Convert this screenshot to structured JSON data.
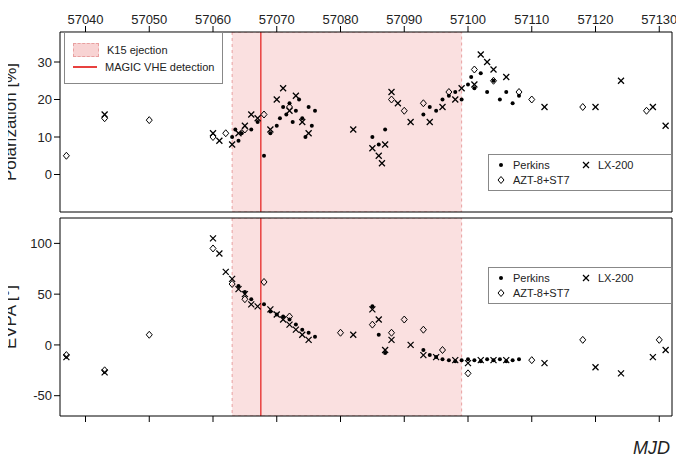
{
  "chart_data": [
    {
      "type": "scatter",
      "y_label": "Polarization [%]",
      "xlim": [
        57036,
        57132
      ],
      "xticks": [
        57040,
        57050,
        57060,
        57070,
        57080,
        57090,
        57100,
        57110,
        57120,
        57130
      ],
      "ylim": [
        -10,
        38
      ],
      "yticks": [
        0,
        10,
        20,
        30
      ],
      "legend": "lower right",
      "annotations": [
        {
          "type": "span",
          "label": "K15 ejection",
          "x": [
            57063,
            57099
          ],
          "color": "#f8d3d3"
        },
        {
          "type": "vline",
          "label": "MAGIC VHE detection",
          "x": 57067.5,
          "color": "#e8413f"
        }
      ],
      "series": [
        {
          "name": "Perkins",
          "color": "#000000",
          "marker": "circle",
          "x": [
            57063,
            57063.5,
            57064,
            57064.5,
            57066,
            57067,
            57068,
            57069,
            57070,
            57070.5,
            57071,
            57071.5,
            57072,
            57072.5,
            57073,
            57073.5,
            57074,
            57074.5,
            57075,
            57075.5,
            57076,
            57085,
            57086,
            57087,
            57093,
            57094,
            57095,
            57096,
            57097,
            57098,
            57099,
            57100,
            57100.5,
            57101,
            57102,
            57103,
            57104,
            57105,
            57106,
            57107,
            57108
          ],
          "values": [
            10,
            12,
            9,
            11,
            12,
            14,
            5,
            11,
            13,
            15,
            18,
            16,
            19,
            14,
            17,
            20,
            15,
            10,
            18,
            13,
            17,
            10,
            8,
            12,
            16,
            18,
            17,
            20,
            21,
            22,
            20,
            24,
            26,
            23,
            27,
            22,
            25,
            20,
            22,
            19,
            21
          ]
        },
        {
          "name": "LX-200",
          "color": "#000000",
          "marker": "x",
          "x": [
            57043,
            57060,
            57061,
            57063,
            57064,
            57065,
            57066,
            57067,
            57069,
            57070,
            57071,
            57072,
            57073,
            57074,
            57075,
            57082,
            57085,
            57086,
            57086.5,
            57087,
            57088,
            57089,
            57091,
            57094,
            57096,
            57098,
            57099,
            57101,
            57102,
            57103,
            57104,
            57106,
            57112,
            57120,
            57124,
            57129,
            57131
          ],
          "values": [
            16,
            11,
            9,
            8,
            11,
            13,
            16,
            15,
            12,
            20,
            23,
            17,
            21,
            14,
            11,
            12,
            7,
            5,
            3,
            8,
            22,
            19,
            14,
            14,
            18,
            20,
            23,
            24,
            32,
            30,
            28,
            26,
            18,
            18,
            25,
            18,
            13
          ]
        },
        {
          "name": "AZT-8+ST7",
          "color": "#000000",
          "marker": "diamond",
          "x": [
            57037,
            57043,
            57050,
            57060,
            57062,
            57065,
            57068,
            57072,
            57088,
            57090,
            57093,
            57097,
            57101,
            57104,
            57108,
            57110,
            57118,
            57128
          ],
          "values": [
            5,
            15,
            14.5,
            10,
            11,
            12,
            16,
            18,
            20,
            17,
            19,
            22,
            28,
            25,
            22,
            20,
            18,
            17
          ]
        }
      ]
    },
    {
      "type": "scatter",
      "y_label": "EVPA [°]",
      "x_label": "MJD",
      "tick_labels": "y",
      "xlim": [
        57036,
        57132
      ],
      "xticks": [
        57040,
        57050,
        57060,
        57070,
        57080,
        57090,
        57100,
        57110,
        57120,
        57130
      ],
      "ylim": [
        -70,
        125
      ],
      "yticks": [
        -50,
        0,
        50,
        100
      ],
      "legend": "right",
      "annotations": [
        {
          "type": "span",
          "x": [
            57063,
            57099
          ],
          "color": "#f8d3d3"
        },
        {
          "type": "vline",
          "x": 57067.5,
          "color": "#e8413f"
        }
      ],
      "series": [
        {
          "name": "Perkins",
          "color": "#000000",
          "marker": "circle",
          "x": [
            57064,
            57065,
            57066,
            57068,
            57069,
            57070,
            57071,
            57072,
            57073,
            57074,
            57075,
            57076,
            57085,
            57086,
            57087,
            57093,
            57094,
            57095,
            57096,
            57097,
            57098,
            57099,
            57100,
            57101,
            57102,
            57103,
            57104,
            57105,
            57106,
            57107,
            57108
          ],
          "values": [
            58,
            52,
            45,
            40,
            33,
            30,
            28,
            25,
            20,
            15,
            12,
            8,
            38,
            10,
            -8,
            -5,
            -10,
            -12,
            -14,
            -15,
            -16,
            -15,
            -14,
            -15,
            -16,
            -14,
            -15,
            -14,
            -16,
            -15,
            -14
          ]
        },
        {
          "name": "LX-200",
          "color": "#000000",
          "marker": "x",
          "x": [
            57037,
            57043,
            57060,
            57061,
            57062,
            57063,
            57064,
            57065,
            57066,
            57067,
            57069,
            57070,
            57071,
            57072,
            57073,
            57074,
            57075,
            57082,
            57085,
            57086,
            57087,
            57088,
            57091,
            57093,
            57095,
            57098,
            57100,
            57102,
            57104,
            57106,
            57112,
            57120,
            57124,
            57129,
            57131
          ],
          "values": [
            -12,
            -27,
            105,
            90,
            72,
            65,
            55,
            50,
            40,
            38,
            35,
            30,
            25,
            20,
            15,
            10,
            5,
            10,
            35,
            25,
            -5,
            5,
            0,
            -10,
            -12,
            -15,
            -18,
            -15,
            -15,
            -15,
            -18,
            -22,
            -28,
            -12,
            -5
          ]
        },
        {
          "name": "AZT-8+ST7",
          "color": "#000000",
          "marker": "diamond",
          "x": [
            57037,
            57043,
            57050,
            57060,
            57063,
            57065,
            57068,
            57072,
            57080,
            57085,
            57088,
            57090,
            57093,
            57096,
            57100,
            57110,
            57118,
            57130
          ],
          "values": [
            -10,
            -25,
            10,
            95,
            60,
            45,
            62,
            28,
            12,
            20,
            12,
            25,
            15,
            -5,
            -28,
            -15,
            5,
            5
          ]
        }
      ]
    }
  ]
}
